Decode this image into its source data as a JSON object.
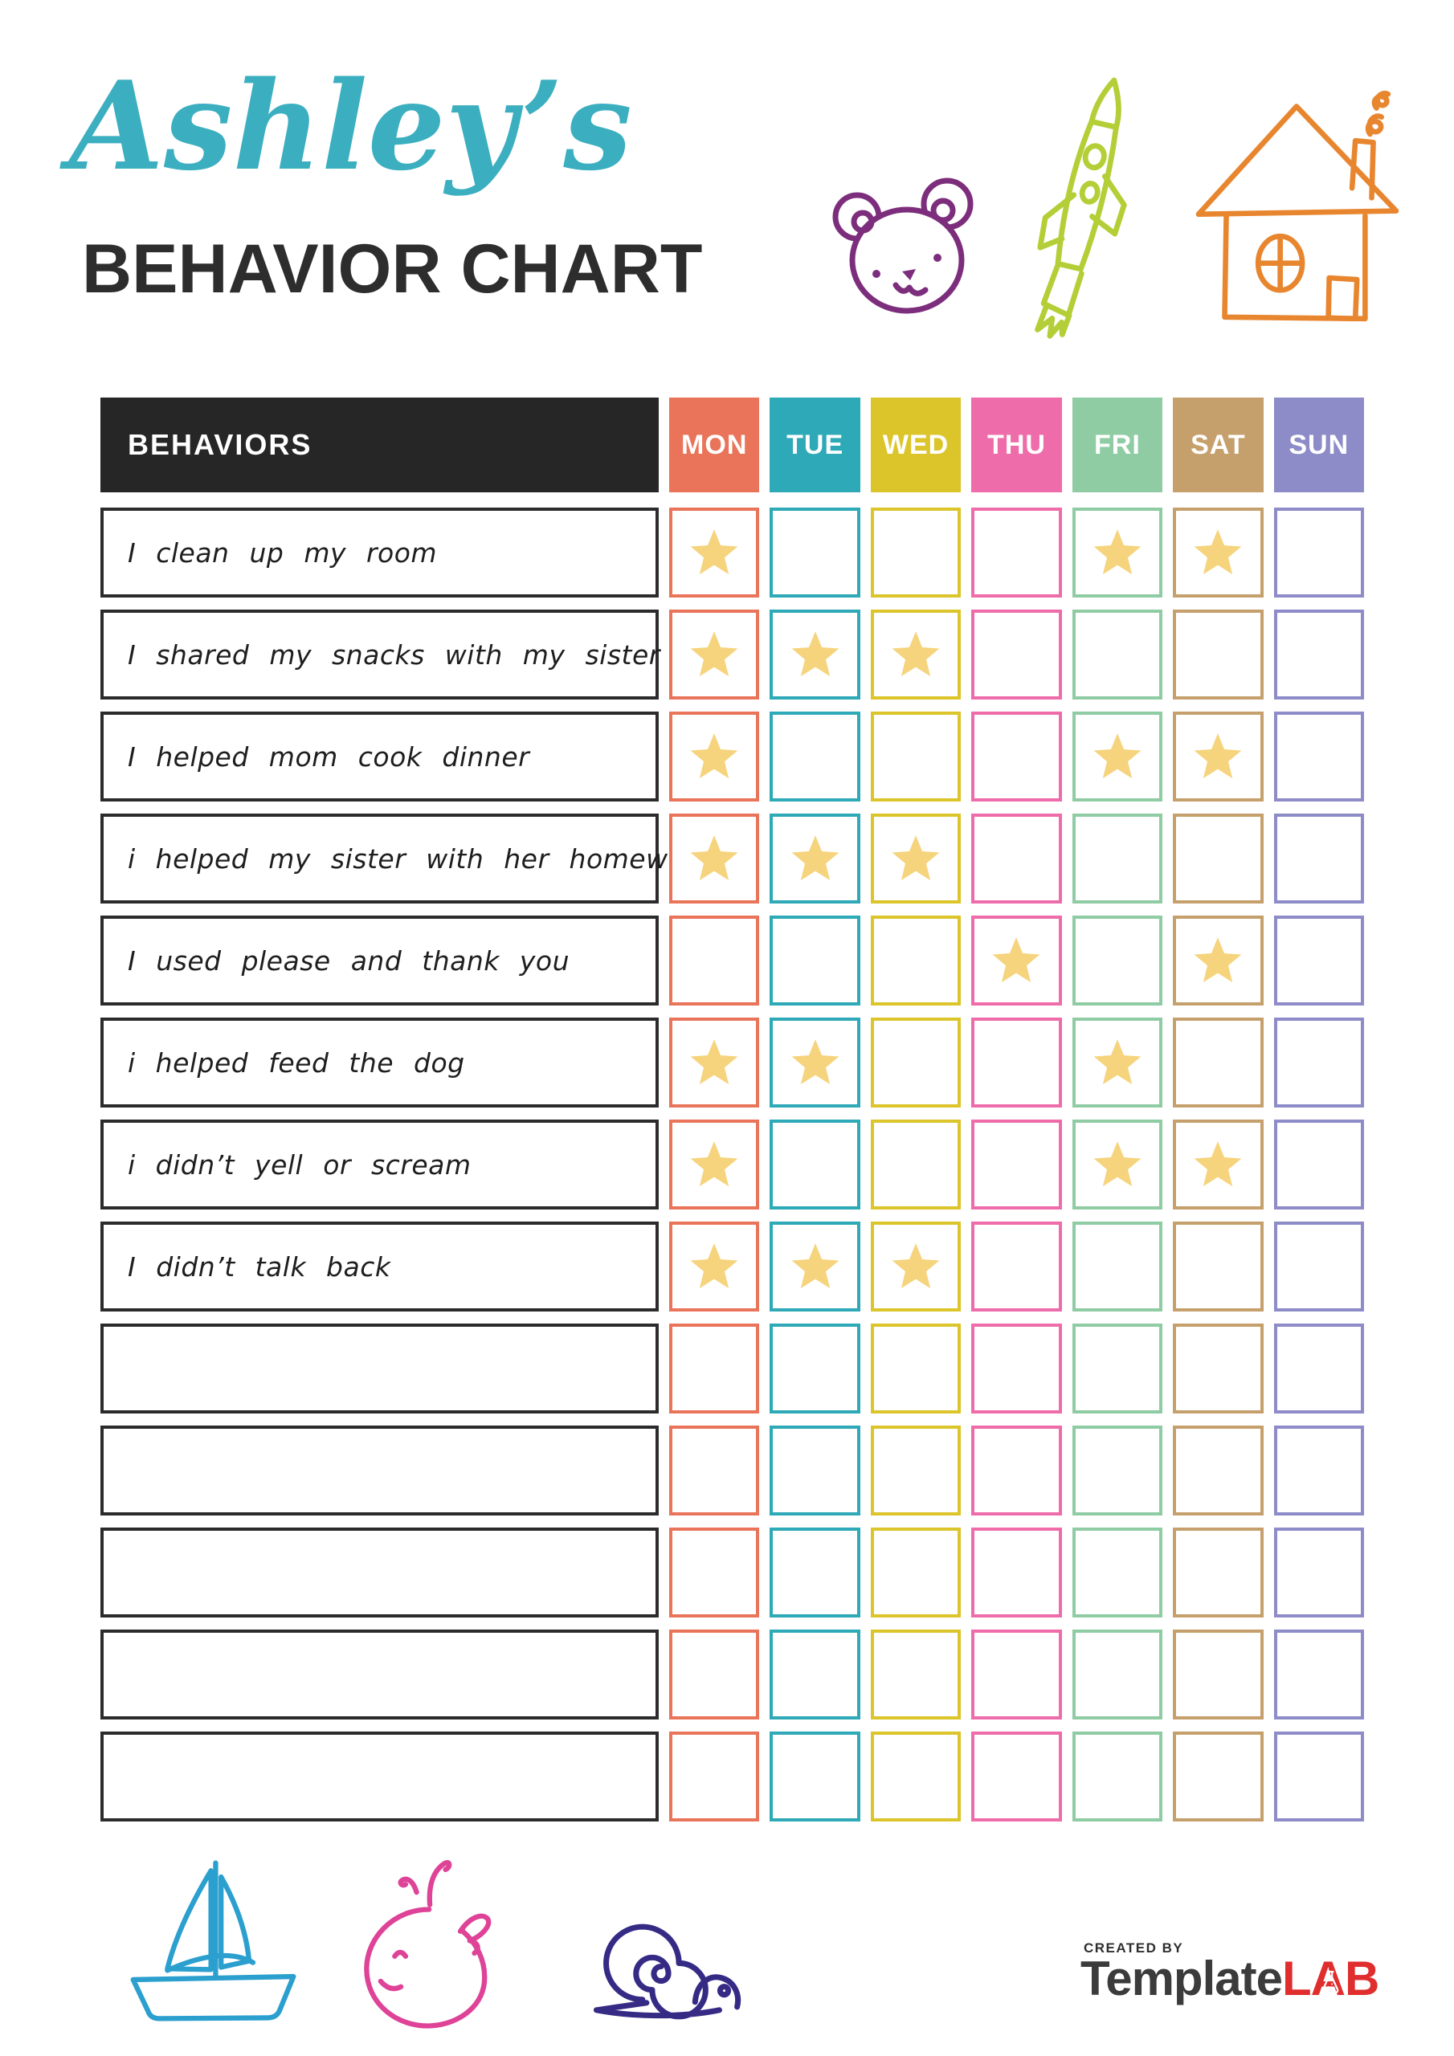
{
  "header": {
    "script_title": "Ashley’s",
    "chart_title": "BEHAVIOR CHART"
  },
  "table": {
    "behaviors_header": "BEHAVIORS",
    "days": [
      {
        "label": "MON",
        "color": "#E9745A"
      },
      {
        "label": "TUE",
        "color": "#2EA9B7"
      },
      {
        "label": "WED",
        "color": "#DCC52B"
      },
      {
        "label": "THU",
        "color": "#EE6CA9"
      },
      {
        "label": "FRI",
        "color": "#8FCCA4"
      },
      {
        "label": "SAT",
        "color": "#C6A06C"
      },
      {
        "label": "SUN",
        "color": "#8D8CC8"
      }
    ],
    "rows": [
      {
        "behavior": "I clean up my room",
        "stars": [
          1,
          0,
          0,
          0,
          1,
          1,
          0
        ]
      },
      {
        "behavior": "I shared my snacks with my sister",
        "stars": [
          1,
          1,
          1,
          0,
          0,
          0,
          0
        ]
      },
      {
        "behavior": "I helped mom cook dinner",
        "stars": [
          1,
          0,
          0,
          0,
          1,
          1,
          0
        ]
      },
      {
        "behavior": "i helped my sister with her homework",
        "stars": [
          1,
          1,
          1,
          0,
          0,
          0,
          0
        ]
      },
      {
        "behavior": "I used please and thank you",
        "stars": [
          0,
          0,
          0,
          1,
          0,
          1,
          0
        ]
      },
      {
        "behavior": "i helped feed the dog",
        "stars": [
          1,
          1,
          0,
          0,
          1,
          0,
          0
        ]
      },
      {
        "behavior": "i didn’t yell or scream",
        "stars": [
          1,
          0,
          0,
          0,
          1,
          1,
          0
        ]
      },
      {
        "behavior": "I didn’t talk back",
        "stars": [
          1,
          1,
          1,
          0,
          0,
          0,
          0
        ]
      },
      {
        "behavior": "",
        "stars": [
          0,
          0,
          0,
          0,
          0,
          0,
          0
        ]
      },
      {
        "behavior": "",
        "stars": [
          0,
          0,
          0,
          0,
          0,
          0,
          0
        ]
      },
      {
        "behavior": "",
        "stars": [
          0,
          0,
          0,
          0,
          0,
          0,
          0
        ]
      },
      {
        "behavior": "",
        "stars": [
          0,
          0,
          0,
          0,
          0,
          0,
          0
        ]
      },
      {
        "behavior": "",
        "stars": [
          0,
          0,
          0,
          0,
          0,
          0,
          0
        ]
      }
    ]
  },
  "footer": {
    "created_by": "CREATED BY",
    "brand_dark": "Template",
    "brand_red": "LAB"
  },
  "icons": {
    "top": [
      "bear-icon",
      "rocket-icon",
      "house-icon"
    ],
    "bottom": [
      "sailboat-icon",
      "whale-icon",
      "snail-icon"
    ]
  },
  "colors": {
    "title_accent": "#3BAFC0",
    "heading_text": "#2D2D2D",
    "header_bg": "#262626",
    "row_border": "#2B2B2B",
    "star": "#F6D47D",
    "brand_dark": "#3B3B3B",
    "brand_red": "#E02D2D",
    "bear": "#7C2E7C",
    "rocket": "#B4CE37",
    "house": "#E8862F",
    "sailboat": "#2B9FCE",
    "whale": "#DE4397",
    "snail": "#352B85"
  }
}
